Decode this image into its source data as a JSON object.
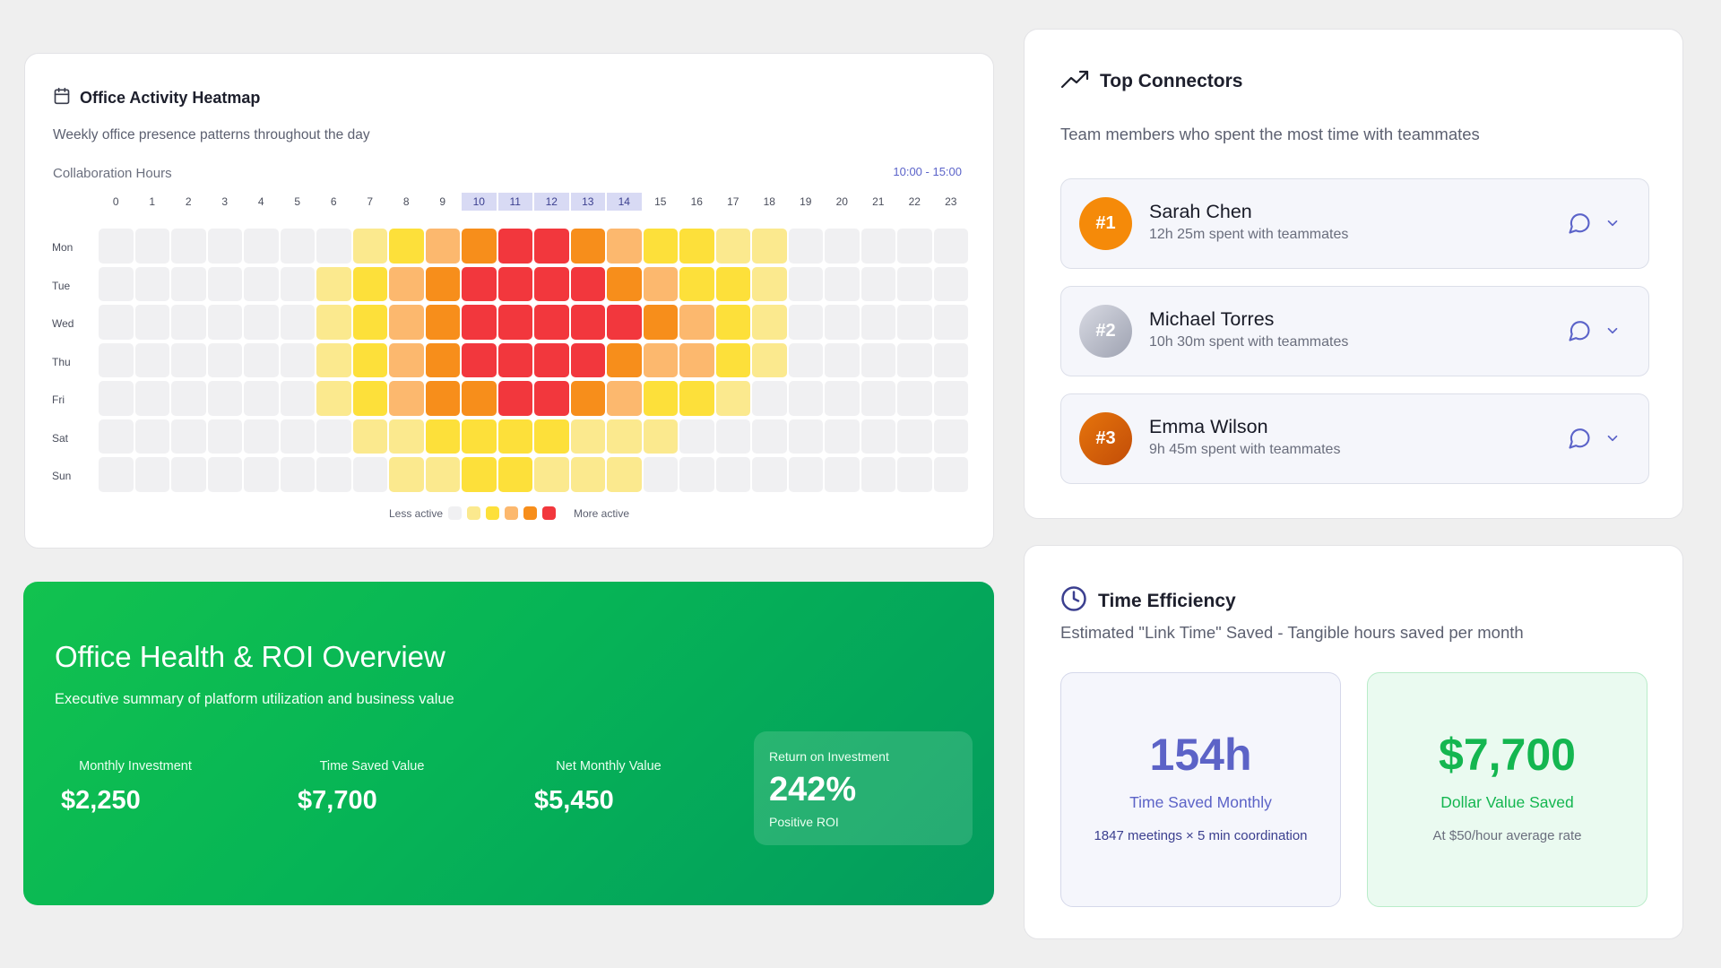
{
  "heatmap": {
    "title": "Office Activity Heatmap",
    "subtitle": "Weekly office presence patterns throughout the day",
    "collab_label": "Collaboration Hours",
    "range_label": "10:00 - 15:00",
    "hours": [
      "0",
      "1",
      "2",
      "3",
      "4",
      "5",
      "6",
      "7",
      "8",
      "9",
      "10",
      "11",
      "12",
      "13",
      "14",
      "15",
      "16",
      "17",
      "18",
      "19",
      "20",
      "21",
      "22",
      "23"
    ],
    "highlighted_hours": [
      10,
      11,
      12,
      13,
      14
    ],
    "days": [
      "Mon",
      "Tue",
      "Wed",
      "Thu",
      "Fri",
      "Sat",
      "Sun"
    ],
    "levels": [
      [
        0,
        0,
        0,
        0,
        0,
        0,
        0,
        1,
        2,
        3,
        4,
        5,
        5,
        4,
        3,
        2,
        2,
        1,
        1,
        0,
        0,
        0,
        0,
        0
      ],
      [
        0,
        0,
        0,
        0,
        0,
        0,
        1,
        2,
        3,
        4,
        5,
        5,
        5,
        5,
        4,
        3,
        2,
        2,
        1,
        0,
        0,
        0,
        0,
        0
      ],
      [
        0,
        0,
        0,
        0,
        0,
        0,
        1,
        2,
        3,
        4,
        5,
        5,
        5,
        5,
        5,
        4,
        3,
        2,
        1,
        0,
        0,
        0,
        0,
        0
      ],
      [
        0,
        0,
        0,
        0,
        0,
        0,
        1,
        2,
        3,
        4,
        5,
        5,
        5,
        5,
        4,
        3,
        3,
        2,
        1,
        0,
        0,
        0,
        0,
        0
      ],
      [
        0,
        0,
        0,
        0,
        0,
        0,
        1,
        2,
        3,
        4,
        4,
        5,
        5,
        4,
        3,
        2,
        2,
        1,
        0,
        0,
        0,
        0,
        0,
        0
      ],
      [
        0,
        0,
        0,
        0,
        0,
        0,
        0,
        1,
        1,
        2,
        2,
        2,
        2,
        1,
        1,
        1,
        0,
        0,
        0,
        0,
        0,
        0,
        0,
        0
      ],
      [
        0,
        0,
        0,
        0,
        0,
        0,
        0,
        0,
        1,
        1,
        2,
        2,
        1,
        1,
        1,
        0,
        0,
        0,
        0,
        0,
        0,
        0,
        0,
        0
      ]
    ],
    "legend_less": "Less active",
    "legend_more": "More active",
    "level_colors": [
      "#f0f0f2",
      "#fbe98e",
      "#fde03a",
      "#fcb86e",
      "#f78e1b",
      "#f2373d"
    ]
  },
  "roi": {
    "title": "Office Health & ROI Overview",
    "subtitle": "Executive summary of platform utilization and business value",
    "metrics": [
      {
        "label": "Monthly Investment",
        "value": "$2,250"
      },
      {
        "label": "Time Saved Value",
        "value": "$7,700"
      },
      {
        "label": "Net Monthly Value",
        "value": "$5,450"
      }
    ],
    "return": {
      "label": "Return on Investment",
      "value": "242%",
      "note": "Positive ROI"
    }
  },
  "connectors": {
    "title": "Top Connectors",
    "subtitle": "Team members who spent the most time with teammates",
    "items": [
      {
        "rank": "#1",
        "name": "Sarah Chen",
        "time": "12h 25m spent with teammates"
      },
      {
        "rank": "#2",
        "name": "Michael Torres",
        "time": "10h 30m spent with teammates"
      },
      {
        "rank": "#3",
        "name": "Emma Wilson",
        "time": "9h 45m spent with teammates"
      }
    ]
  },
  "efficiency": {
    "title": "Time Efficiency",
    "subtitle": "Estimated \"Link Time\" Saved - Tangible hours saved per month",
    "hours": {
      "value": "154h",
      "label": "Time Saved Monthly",
      "note": "1847 meetings × 5 min coordination"
    },
    "dollars": {
      "value": "$7,700",
      "label": "Dollar Value Saved",
      "note": "At $50/hour average rate"
    }
  }
}
